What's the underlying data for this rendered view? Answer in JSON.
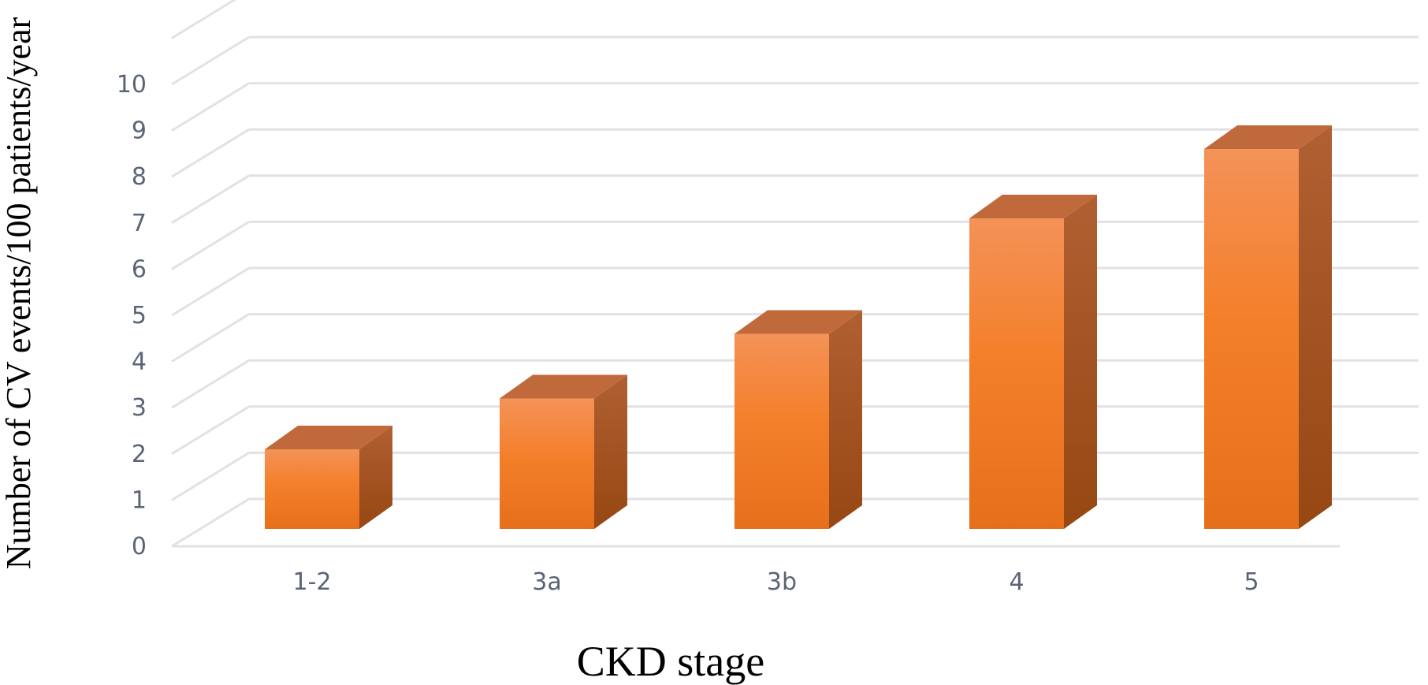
{
  "chart_data": {
    "type": "bar",
    "style": "3d-column",
    "categories": [
      "1-2",
      "3a",
      "3b",
      "4",
      "5"
    ],
    "values": [
      2.1,
      3.2,
      4.6,
      7.1,
      8.6
    ],
    "xlabel": "CKD stage",
    "ylabel": "Number of CV events/100 patients/year",
    "ylim": [
      0,
      10
    ],
    "y_ticks": [
      "0",
      "1",
      "2",
      "3",
      "4",
      "5",
      "6",
      "7",
      "8",
      "9",
      "10"
    ],
    "grid": true,
    "legend": "none",
    "colors": {
      "bar_front": "#f07d28",
      "bar_side": "#a8511c",
      "bar_top": "#c06a3c",
      "gridline": "#e1e1e7",
      "tick_text": "#5a6476"
    }
  }
}
